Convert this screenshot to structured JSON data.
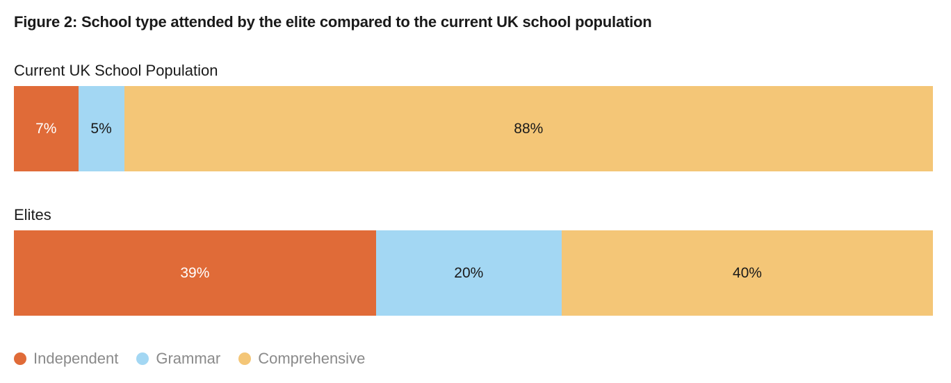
{
  "chart_data": {
    "type": "bar",
    "orientation": "horizontal",
    "stacked": true,
    "title": "Figure 2: School type attended by the elite compared to the current UK school population",
    "categories": [
      "Current UK School Population",
      "Elites"
    ],
    "series": [
      {
        "name": "Independent",
        "color": "#e06b38",
        "label_color": "#ffffff",
        "values": [
          7,
          39
        ],
        "labels": [
          "7%",
          "39%"
        ]
      },
      {
        "name": "Grammar",
        "color": "#a3d7f3",
        "label_color": "#1a1a1a",
        "values": [
          5,
          20
        ],
        "labels": [
          "5%",
          "20%"
        ]
      },
      {
        "name": "Comprehensive",
        "color": "#f4c677",
        "label_color": "#1a1a1a",
        "values": [
          88,
          40
        ],
        "labels": [
          "88%",
          "40%"
        ]
      }
    ],
    "legend_position": "bottom-left",
    "grid": false
  }
}
